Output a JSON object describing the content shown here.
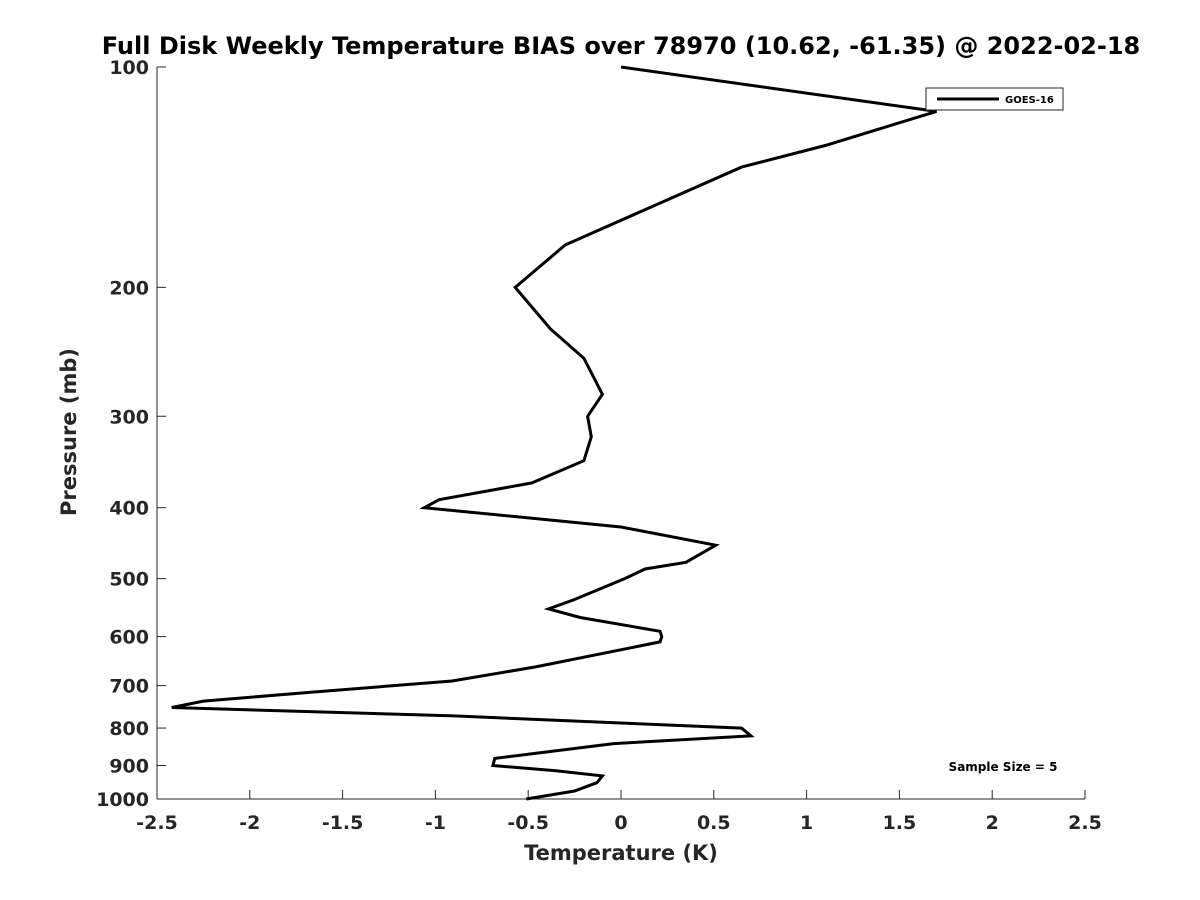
{
  "chart_data": {
    "type": "line",
    "title": "Full Disk Weekly Temperature BIAS over 78970 (10.62, -61.35) @ 2022-02-18",
    "xlabel": "Temperature (K)",
    "ylabel": "Pressure (mb)",
    "xlim": [
      -2.5,
      2.5
    ],
    "ylim": [
      100,
      1000
    ],
    "y_scale": "log",
    "y_reversed": true,
    "xticks": [
      "-2.5",
      "-2",
      "-1.5",
      "-1",
      "-0.5",
      "0",
      "0.5",
      "1",
      "1.5",
      "2",
      "2.5"
    ],
    "yticks": [
      "100",
      "200",
      "300",
      "400",
      "500",
      "600",
      "700",
      "800",
      "900",
      "1000"
    ],
    "grid": false,
    "legend_position": "top-right",
    "series": [
      {
        "name": "GOES-16",
        "color": "#000000",
        "x": [
          0.0,
          1.7,
          1.1,
          0.65,
          -0.3,
          -0.57,
          -0.38,
          -0.2,
          -0.1,
          -0.18,
          -0.16,
          -0.2,
          -0.48,
          -0.98,
          -1.06,
          0.0,
          0.51,
          0.35,
          0.13,
          0.02,
          -0.26,
          -0.39,
          -0.22,
          0.21,
          0.22,
          0.21,
          -0.46,
          -0.91,
          -1.68,
          -2.25,
          -2.42,
          -0.9,
          0.65,
          0.7,
          -0.04,
          -0.68,
          -0.69,
          -0.35,
          -0.1,
          -0.13,
          -0.25,
          -0.51
        ],
        "y": [
          100,
          115,
          128,
          137,
          175,
          200,
          228,
          250,
          280,
          300,
          320,
          345,
          370,
          390,
          400,
          425,
          450,
          475,
          485,
          500,
          535,
          550,
          565,
          590,
          600,
          610,
          660,
          690,
          715,
          735,
          750,
          770,
          800,
          820,
          840,
          880,
          900,
          915,
          930,
          950,
          975,
          1000
        ]
      }
    ],
    "annotation": "Sample Size = 5"
  }
}
